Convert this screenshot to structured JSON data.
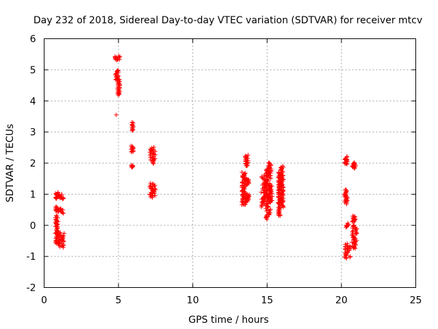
{
  "chart_data": {
    "type": "scatter",
    "title": "Day 232 of 2018, Sidereal Day-to-day VTEC variation (SDTVAR) for receiver mtcv",
    "xlabel": "GPS time / hours",
    "ylabel": "SDTVAR / TECUs",
    "xlim": [
      0,
      25
    ],
    "ylim": [
      -2,
      6
    ],
    "xticks": [
      0,
      5,
      10,
      15,
      20,
      25
    ],
    "yticks": [
      -2,
      -1,
      0,
      1,
      2,
      3,
      4,
      5,
      6
    ],
    "grid": true,
    "marker": "+",
    "color": "#ff0000",
    "clusters": [
      {
        "x": [
          0.75,
          0.95
        ],
        "y": [
          0.85,
          1.05
        ]
      },
      {
        "x": [
          0.95,
          1.3
        ],
        "y": [
          0.85,
          1.0
        ]
      },
      {
        "x": [
          0.75,
          0.95
        ],
        "y": [
          0.45,
          0.6
        ]
      },
      {
        "x": [
          0.95,
          1.3
        ],
        "y": [
          0.4,
          0.55
        ]
      },
      {
        "x": [
          0.75,
          0.95
        ],
        "y": [
          -0.6,
          0.3
        ]
      },
      {
        "x": [
          0.95,
          1.35
        ],
        "y": [
          -0.7,
          -0.25
        ]
      },
      {
        "x": [
          4.75,
          5.1
        ],
        "y": [
          5.3,
          5.45
        ]
      },
      {
        "x": [
          4.8,
          5.0
        ],
        "y": [
          4.7,
          5.0
        ]
      },
      {
        "x": [
          4.9,
          5.1
        ],
        "y": [
          4.2,
          4.7
        ]
      },
      {
        "x": [
          4.85,
          4.85
        ],
        "y": [
          3.55,
          3.55
        ]
      },
      {
        "x": [
          5.9,
          6.0
        ],
        "y": [
          3.05,
          3.3
        ]
      },
      {
        "x": [
          5.85,
          6.0
        ],
        "y": [
          2.35,
          2.55
        ]
      },
      {
        "x": [
          5.85,
          6.0
        ],
        "y": [
          1.85,
          1.95
        ]
      },
      {
        "x": [
          7.1,
          7.5
        ],
        "y": [
          2.0,
          2.5
        ]
      },
      {
        "x": [
          7.1,
          7.5
        ],
        "y": [
          0.9,
          1.35
        ]
      },
      {
        "x": [
          13.3,
          13.55
        ],
        "y": [
          0.65,
          1.7
        ]
      },
      {
        "x": [
          13.5,
          13.75
        ],
        "y": [
          1.9,
          2.25
        ]
      },
      {
        "x": [
          13.55,
          13.8
        ],
        "y": [
          1.3,
          1.5
        ]
      },
      {
        "x": [
          13.55,
          13.85
        ],
        "y": [
          0.75,
          1.0
        ]
      },
      {
        "x": [
          14.6,
          15.0
        ],
        "y": [
          0.6,
          1.6
        ]
      },
      {
        "x": [
          14.9,
          15.25
        ],
        "y": [
          0.2,
          1.8
        ]
      },
      {
        "x": [
          15.0,
          15.3
        ],
        "y": [
          1.6,
          2.0
        ]
      },
      {
        "x": [
          15.1,
          15.35
        ],
        "y": [
          0.8,
          1.3
        ]
      },
      {
        "x": [
          15.75,
          15.9
        ],
        "y": [
          0.3,
          1.7
        ]
      },
      {
        "x": [
          15.9,
          16.1
        ],
        "y": [
          0.6,
          1.9
        ]
      },
      {
        "x": [
          20.2,
          20.4
        ],
        "y": [
          1.95,
          2.2
        ]
      },
      {
        "x": [
          20.2,
          20.4
        ],
        "y": [
          0.7,
          1.15
        ]
      },
      {
        "x": [
          20.3,
          20.5
        ],
        "y": [
          -0.05,
          0.05
        ]
      },
      {
        "x": [
          20.2,
          20.6
        ],
        "y": [
          -1.05,
          -0.6
        ]
      },
      {
        "x": [
          20.7,
          21.0
        ],
        "y": [
          1.85,
          2.0
        ]
      },
      {
        "x": [
          20.7,
          20.95
        ],
        "y": [
          0.1,
          0.3
        ]
      },
      {
        "x": [
          20.7,
          21.05
        ],
        "y": [
          -0.75,
          0.0
        ]
      }
    ]
  }
}
